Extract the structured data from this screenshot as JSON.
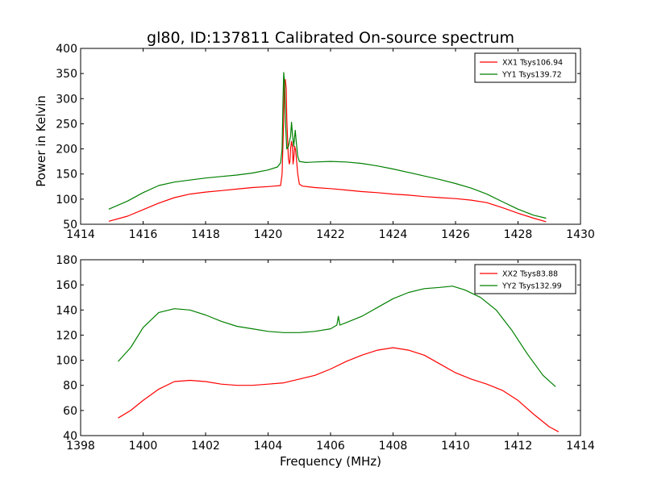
{
  "figure": {
    "title": "gl80, ID:137811 Calibrated On-source spectrum",
    "ylabel": "Power in Kelvin",
    "xlabel": "Frequency (MHz)"
  },
  "chart_data": [
    {
      "type": "line",
      "xlim": [
        1414,
        1430
      ],
      "ylim": [
        50,
        400
      ],
      "xticks": [
        1414,
        1416,
        1418,
        1420,
        1422,
        1424,
        1426,
        1428,
        1430
      ],
      "yticks": [
        50,
        100,
        150,
        200,
        250,
        300,
        350,
        400
      ],
      "legend": "top-right",
      "grid": false,
      "series": [
        {
          "name": "XX1 Tsys106.94",
          "color": "#ff0000",
          "points": [
            [
              1414.9,
              56
            ],
            [
              1415.5,
              66
            ],
            [
              1416,
              79
            ],
            [
              1416.5,
              92
            ],
            [
              1417,
              103
            ],
            [
              1417.5,
              110
            ],
            [
              1418,
              114
            ],
            [
              1418.5,
              117
            ],
            [
              1419,
              120
            ],
            [
              1419.5,
              123
            ],
            [
              1420,
              125
            ],
            [
              1420.2,
              126
            ],
            [
              1420.4,
              127
            ],
            [
              1420.45,
              150
            ],
            [
              1420.5,
              260
            ],
            [
              1420.52,
              330
            ],
            [
              1420.55,
              338
            ],
            [
              1420.58,
              320
            ],
            [
              1420.6,
              260
            ],
            [
              1420.65,
              180
            ],
            [
              1420.68,
              170
            ],
            [
              1420.7,
              175
            ],
            [
              1420.72,
              200
            ],
            [
              1420.75,
              215
            ],
            [
              1420.78,
              205
            ],
            [
              1420.8,
              170
            ],
            [
              1420.82,
              180
            ],
            [
              1420.85,
              205
            ],
            [
              1420.88,
              198
            ],
            [
              1420.9,
              185
            ],
            [
              1420.95,
              150
            ],
            [
              1421,
              130
            ],
            [
              1421.1,
              126
            ],
            [
              1421.5,
              123
            ],
            [
              1422,
              121
            ],
            [
              1422.5,
              118
            ],
            [
              1423,
              115
            ],
            [
              1423.5,
              113
            ],
            [
              1424,
              110
            ],
            [
              1424.5,
              108
            ],
            [
              1425,
              105
            ],
            [
              1425.5,
              103
            ],
            [
              1426,
              101
            ],
            [
              1426.5,
              98
            ],
            [
              1427,
              93
            ],
            [
              1427.5,
              83
            ],
            [
              1428,
              72
            ],
            [
              1428.5,
              62
            ],
            [
              1428.9,
              55
            ]
          ]
        },
        {
          "name": "YY1 Tsys139.72",
          "color": "#008000",
          "points": [
            [
              1414.9,
              80
            ],
            [
              1415.5,
              96
            ],
            [
              1416,
              113
            ],
            [
              1416.5,
              127
            ],
            [
              1417,
              134
            ],
            [
              1417.5,
              138
            ],
            [
              1418,
              142
            ],
            [
              1418.5,
              145
            ],
            [
              1419,
              148
            ],
            [
              1419.5,
              152
            ],
            [
              1420,
              158
            ],
            [
              1420.3,
              164
            ],
            [
              1420.4,
              172
            ],
            [
              1420.45,
              200
            ],
            [
              1420.48,
              300
            ],
            [
              1420.5,
              352
            ],
            [
              1420.53,
              330
            ],
            [
              1420.56,
              250
            ],
            [
              1420.6,
              200
            ],
            [
              1420.65,
              205
            ],
            [
              1420.72,
              225
            ],
            [
              1420.75,
              253
            ],
            [
              1420.78,
              230
            ],
            [
              1420.82,
              205
            ],
            [
              1420.87,
              237
            ],
            [
              1420.9,
              215
            ],
            [
              1420.95,
              185
            ],
            [
              1421,
              175
            ],
            [
              1421.2,
              173
            ],
            [
              1421.5,
              174
            ],
            [
              1422,
              175
            ],
            [
              1422.5,
              174
            ],
            [
              1423,
              171
            ],
            [
              1423.5,
              166
            ],
            [
              1424,
              160
            ],
            [
              1424.5,
              153
            ],
            [
              1425,
              146
            ],
            [
              1425.5,
              139
            ],
            [
              1426,
              131
            ],
            [
              1426.5,
              122
            ],
            [
              1427,
              110
            ],
            [
              1427.5,
              95
            ],
            [
              1428,
              80
            ],
            [
              1428.5,
              68
            ],
            [
              1428.9,
              62
            ]
          ]
        }
      ]
    },
    {
      "type": "line",
      "xlim": [
        1398,
        1414
      ],
      "ylim": [
        40,
        180
      ],
      "xticks": [
        1398,
        1400,
        1402,
        1404,
        1406,
        1408,
        1410,
        1412,
        1414
      ],
      "yticks": [
        40,
        60,
        80,
        100,
        120,
        140,
        160,
        180
      ],
      "legend": "top-right",
      "grid": false,
      "series": [
        {
          "name": "XX2 Tsys83.88",
          "color": "#ff0000",
          "points": [
            [
              1399.2,
              54
            ],
            [
              1399.6,
              60
            ],
            [
              1400,
              68
            ],
            [
              1400.5,
              77
            ],
            [
              1401,
              83
            ],
            [
              1401.5,
              84
            ],
            [
              1402,
              83
            ],
            [
              1402.5,
              81
            ],
            [
              1403,
              80
            ],
            [
              1403.5,
              80
            ],
            [
              1404,
              81
            ],
            [
              1404.5,
              82
            ],
            [
              1405,
              85
            ],
            [
              1405.5,
              88
            ],
            [
              1406,
              93
            ],
            [
              1406.5,
              99
            ],
            [
              1407,
              104
            ],
            [
              1407.5,
              108
            ],
            [
              1408,
              110
            ],
            [
              1408.5,
              108
            ],
            [
              1409,
              104
            ],
            [
              1409.5,
              97
            ],
            [
              1410,
              90
            ],
            [
              1410.5,
              85
            ],
            [
              1411,
              81
            ],
            [
              1411.5,
              76
            ],
            [
              1412,
              68
            ],
            [
              1412.5,
              57
            ],
            [
              1413,
              47
            ],
            [
              1413.3,
              43
            ]
          ]
        },
        {
          "name": "YY2 Tsys132.99",
          "color": "#008000",
          "points": [
            [
              1399.2,
              99
            ],
            [
              1399.6,
              110
            ],
            [
              1400,
              126
            ],
            [
              1400.5,
              138
            ],
            [
              1401,
              141
            ],
            [
              1401.5,
              140
            ],
            [
              1402,
              136
            ],
            [
              1402.5,
              131
            ],
            [
              1403,
              127
            ],
            [
              1403.5,
              125
            ],
            [
              1404,
              123
            ],
            [
              1404.5,
              122
            ],
            [
              1405,
              122
            ],
            [
              1405.5,
              123
            ],
            [
              1406,
              125
            ],
            [
              1406.2,
              128
            ],
            [
              1406.25,
              135
            ],
            [
              1406.3,
              128
            ],
            [
              1406.5,
              130
            ],
            [
              1407,
              135
            ],
            [
              1407.5,
              142
            ],
            [
              1408,
              149
            ],
            [
              1408.5,
              154
            ],
            [
              1409,
              157
            ],
            [
              1409.5,
              158
            ],
            [
              1409.9,
              159
            ],
            [
              1410.3,
              156
            ],
            [
              1410.8,
              150
            ],
            [
              1411.3,
              140
            ],
            [
              1411.8,
              124
            ],
            [
              1412.3,
              105
            ],
            [
              1412.8,
              88
            ],
            [
              1413.2,
              79
            ]
          ]
        }
      ]
    }
  ]
}
